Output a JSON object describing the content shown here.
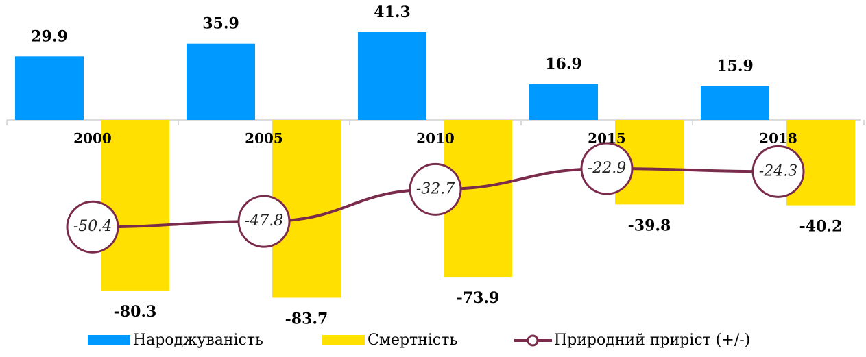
{
  "chart_data": {
    "type": "bar",
    "categories": [
      "2000",
      "2005",
      "2010",
      "2015",
      "2018"
    ],
    "series": [
      {
        "name": "Народжуваність",
        "color": "#0099ff",
        "values": [
          29.9,
          35.9,
          41.3,
          16.9,
          15.9
        ]
      },
      {
        "name": "Смертність",
        "color": "#ffe000",
        "values": [
          -80.3,
          -83.7,
          -73.9,
          -39.8,
          -40.2
        ]
      },
      {
        "name": "Природний приріст (+/-)",
        "type": "line",
        "color": "#7a2a4a",
        "values": [
          -50.4,
          -47.8,
          -32.7,
          -22.9,
          -24.3
        ]
      }
    ],
    "legend": "bottom"
  }
}
